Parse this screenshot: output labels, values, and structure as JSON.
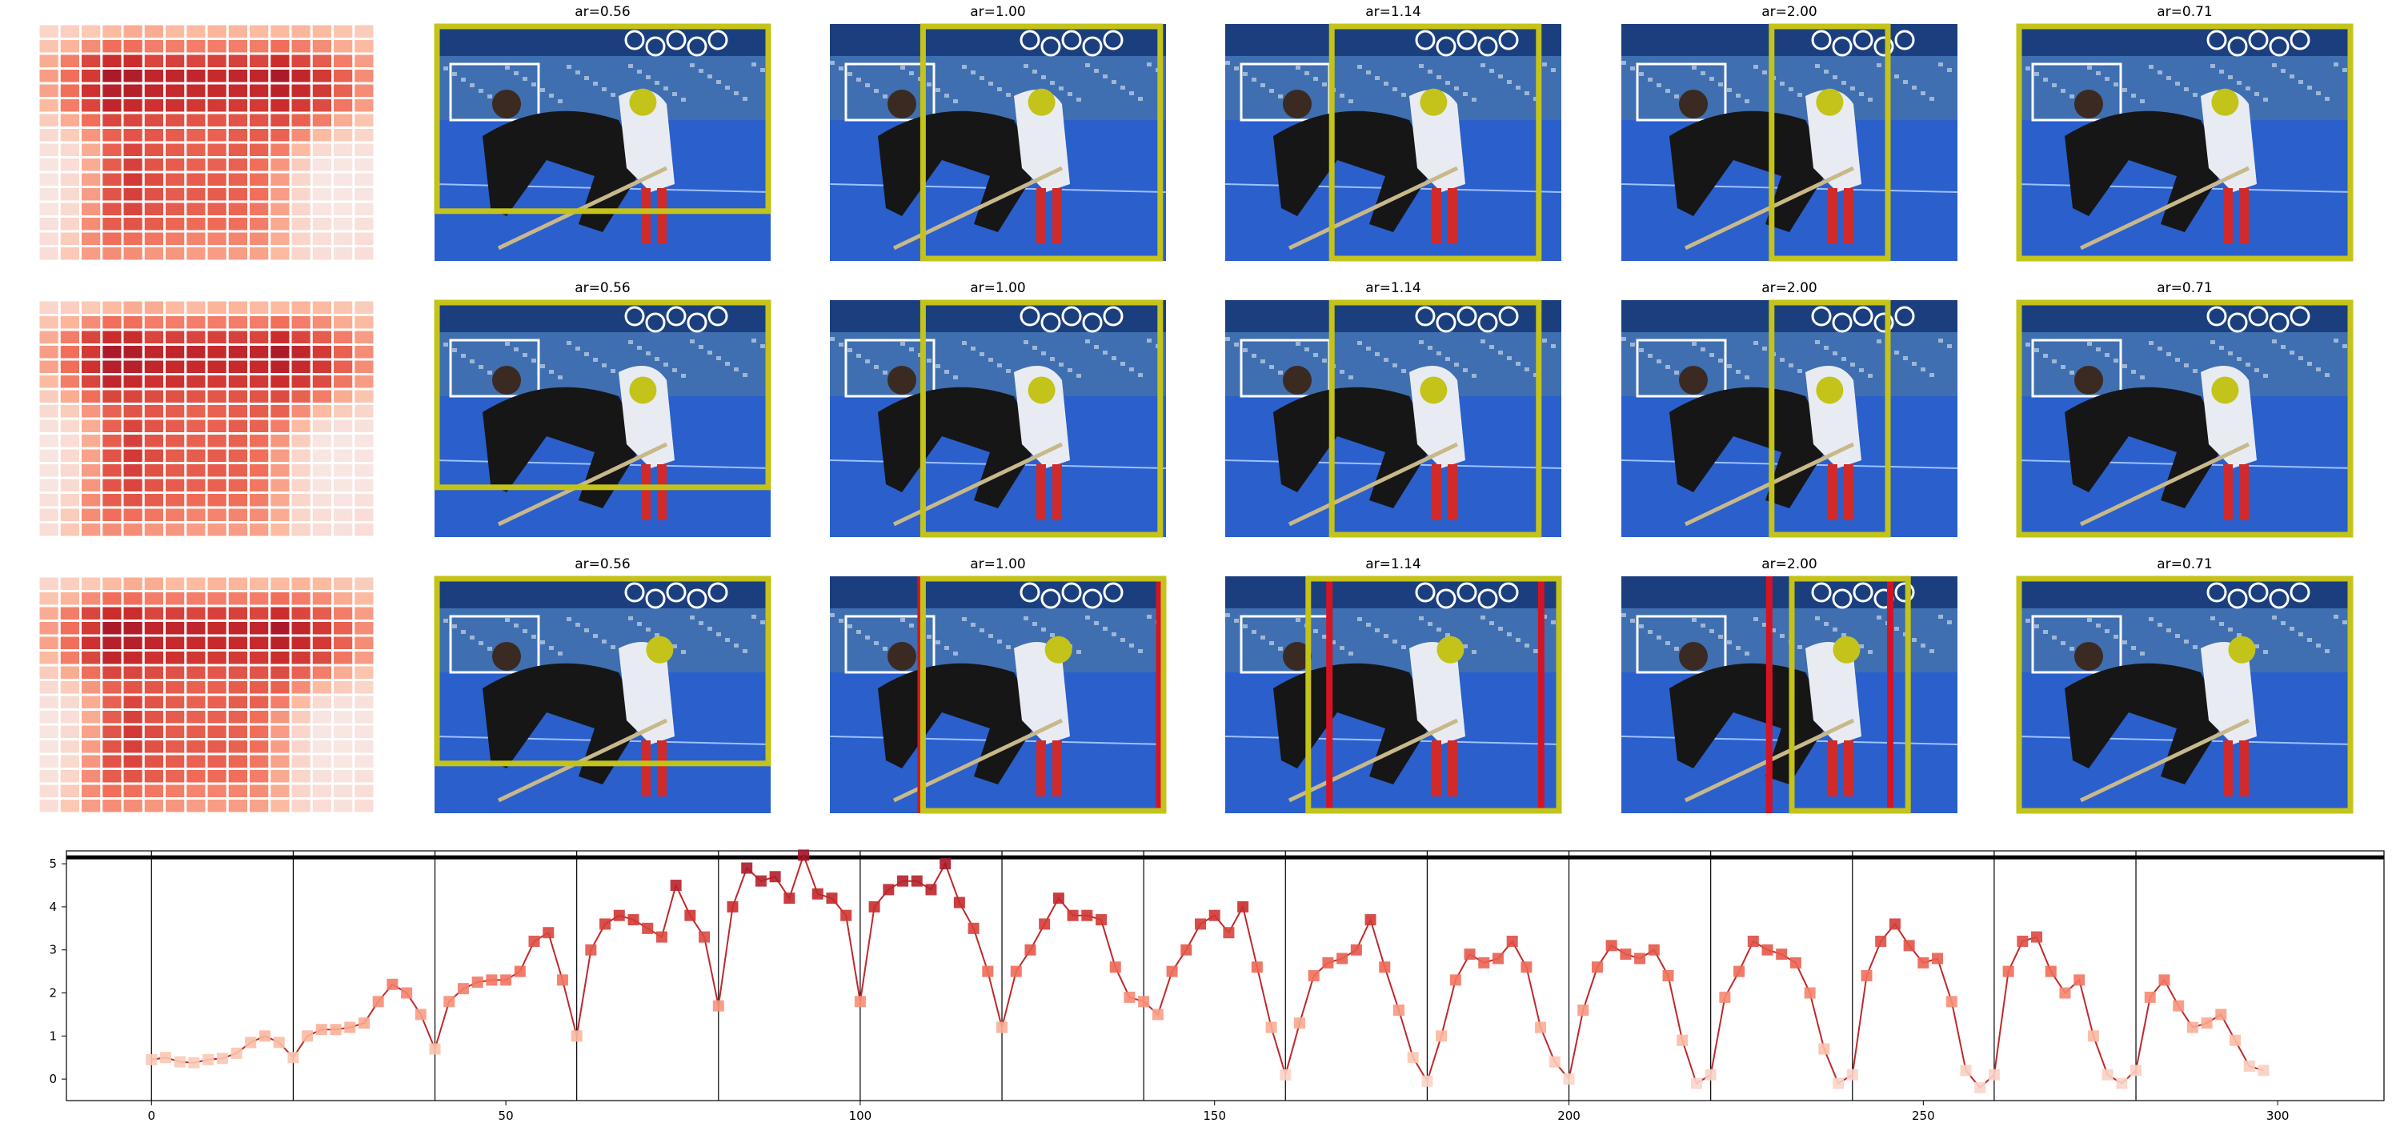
{
  "panels": {
    "titles": [
      "ar=0.56",
      "ar=1.00",
      "ar=1.14",
      "ar=2.00",
      "ar=0.71"
    ],
    "rows": [
      {
        "crops": [
          {
            "title": "ar=0.56",
            "crop": [
              0.0,
              0.0,
              1.0,
              0.8
            ],
            "point": [
              0.62,
              0.33
            ],
            "red_lines": []
          },
          {
            "title": "ar=1.00",
            "crop": [
              0.27,
              0.0,
              0.99,
              1.0
            ],
            "point": [
              0.63,
              0.33
            ],
            "red_lines": []
          },
          {
            "title": "ar=1.14",
            "crop": [
              0.31,
              0.0,
              0.94,
              1.0
            ],
            "point": [
              0.62,
              0.33
            ],
            "red_lines": []
          },
          {
            "title": "ar=2.00",
            "crop": [
              0.44,
              0.0,
              0.8,
              1.0
            ],
            "point": [
              0.62,
              0.33
            ],
            "red_lines": []
          },
          {
            "title": "ar=0.71",
            "crop": [
              0.0,
              0.0,
              1.0,
              1.0
            ],
            "point": [
              0.62,
              0.33
            ],
            "red_lines": []
          }
        ]
      },
      {
        "crops": [
          {
            "title": "ar=0.56",
            "crop": [
              0.0,
              0.0,
              1.0,
              0.8
            ],
            "point": [
              0.62,
              0.38
            ],
            "red_lines": []
          },
          {
            "title": "ar=1.00",
            "crop": [
              0.27,
              0.0,
              0.99,
              1.0
            ],
            "point": [
              0.63,
              0.38
            ],
            "red_lines": []
          },
          {
            "title": "ar=1.14",
            "crop": [
              0.31,
              0.0,
              0.94,
              1.0
            ],
            "point": [
              0.62,
              0.38
            ],
            "red_lines": []
          },
          {
            "title": "ar=2.00",
            "crop": [
              0.44,
              0.0,
              0.8,
              1.0
            ],
            "point": [
              0.62,
              0.38
            ],
            "red_lines": []
          },
          {
            "title": "ar=0.71",
            "crop": [
              0.0,
              0.0,
              1.0,
              1.0
            ],
            "point": [
              0.62,
              0.38
            ],
            "red_lines": []
          }
        ]
      },
      {
        "crops": [
          {
            "title": "ar=0.56",
            "crop": [
              0.0,
              0.0,
              1.0,
              0.8
            ],
            "point": [
              0.67,
              0.31
            ],
            "red_lines": []
          },
          {
            "title": "ar=1.00",
            "crop": [
              0.27,
              0.0,
              1.0,
              1.0
            ],
            "point": [
              0.68,
              0.31
            ],
            "red_lines": [
              0.27,
              0.98
            ]
          },
          {
            "title": "ar=1.14",
            "crop": [
              0.24,
              0.0,
              1.0,
              1.0
            ],
            "point": [
              0.67,
              0.31
            ],
            "red_lines": [
              0.31,
              0.94
            ]
          },
          {
            "title": "ar=2.00",
            "crop": [
              0.5,
              0.0,
              0.86,
              1.0
            ],
            "point": [
              0.67,
              0.31
            ],
            "red_lines": [
              0.44,
              0.8
            ]
          },
          {
            "title": "ar=0.71",
            "crop": [
              0.0,
              0.0,
              1.0,
              1.0
            ],
            "point": [
              0.67,
              0.31
            ],
            "red_lines": []
          }
        ]
      }
    ]
  },
  "colors": {
    "box": "#c3c31a",
    "red_line": "#d41424",
    "line": "#c0282a",
    "axis": "#000000",
    "sky": "#3f6fb0",
    "field": "#2a5fcc",
    "banner": "#1b3f7e",
    "player_dark": "#161616",
    "player_light": "#e8ecf2",
    "socks": "#d02a2a"
  },
  "chart_data": {
    "type": "line",
    "title": "",
    "xlabel": "",
    "ylabel": "",
    "xlim": [
      -12,
      315
    ],
    "ylim": [
      -0.5,
      5.3
    ],
    "xticks": [
      0,
      50,
      100,
      150,
      200,
      250,
      300
    ],
    "yticks": [
      0,
      1,
      2,
      3,
      4,
      5
    ],
    "vlines": [
      0,
      20,
      40,
      60,
      80,
      100,
      120,
      140,
      160,
      180,
      200,
      220,
      240,
      260,
      280
    ],
    "hline": 5.15,
    "markers": "square, colour by value (light to dark red)",
    "series": [
      {
        "x": [
          0,
          2,
          4,
          6,
          8,
          10,
          12,
          14,
          16,
          18,
          20,
          22,
          24,
          26,
          28,
          30,
          32,
          34,
          36,
          38,
          40,
          42,
          44,
          46,
          48,
          50,
          52,
          54,
          56,
          58,
          60,
          62,
          64,
          66,
          68,
          70,
          72,
          74,
          76,
          78,
          80,
          82,
          84,
          86,
          88,
          90,
          92,
          94,
          96,
          98,
          100,
          102,
          104,
          106,
          108,
          110,
          112,
          114,
          116,
          118,
          120,
          122,
          124,
          126,
          128,
          130,
          132,
          134,
          136,
          138,
          140,
          142,
          144,
          146,
          148,
          150,
          152,
          154,
          156,
          158,
          160,
          162,
          164,
          166,
          168,
          170,
          172,
          174,
          176,
          178,
          180,
          182,
          184,
          186,
          188,
          190,
          192,
          194,
          196,
          198,
          200,
          202,
          204,
          206,
          208,
          210,
          212,
          214,
          216,
          218,
          220,
          222,
          224,
          226,
          228,
          230,
          232,
          234,
          236,
          238,
          240,
          242,
          244,
          246,
          248,
          250,
          252,
          254,
          256,
          258,
          260,
          262,
          264,
          266,
          268,
          270,
          272,
          274,
          276,
          278,
          280,
          282,
          284,
          286,
          288,
          290,
          292,
          294,
          296,
          298
        ],
        "y": [
          0.45,
          0.5,
          0.4,
          0.38,
          0.45,
          0.48,
          0.6,
          0.85,
          1.0,
          0.85,
          0.5,
          1.0,
          1.15,
          1.15,
          1.2,
          1.3,
          1.8,
          2.2,
          2.0,
          1.5,
          0.7,
          1.8,
          2.1,
          2.25,
          2.3,
          2.3,
          2.5,
          3.2,
          3.4,
          2.3,
          1.0,
          3.0,
          3.6,
          3.8,
          3.7,
          3.5,
          3.3,
          4.5,
          3.8,
          3.3,
          1.7,
          4.0,
          4.9,
          4.6,
          4.7,
          4.2,
          5.2,
          4.3,
          4.2,
          3.8,
          1.8,
          4.0,
          4.4,
          4.6,
          4.6,
          4.4,
          5.0,
          4.1,
          3.5,
          2.5,
          1.2,
          2.5,
          3.0,
          3.6,
          4.2,
          3.8,
          3.8,
          3.7,
          2.6,
          1.9,
          1.8,
          1.5,
          2.5,
          3.0,
          3.6,
          3.8,
          3.4,
          4.0,
          2.6,
          1.2,
          0.1,
          1.3,
          2.4,
          2.7,
          2.8,
          3.0,
          3.7,
          2.6,
          1.6,
          0.5,
          -0.05,
          1.0,
          2.3,
          2.9,
          2.7,
          2.8,
          3.2,
          2.6,
          1.2,
          0.4,
          0.0,
          1.6,
          2.6,
          3.1,
          2.9,
          2.8,
          3.0,
          2.4,
          0.9,
          -0.1,
          0.1,
          1.9,
          2.5,
          3.2,
          3.0,
          2.9,
          2.7,
          2.0,
          0.7,
          -0.1,
          0.1,
          2.4,
          3.2,
          3.6,
          3.1,
          2.7,
          2.8,
          1.8,
          0.2,
          -0.2,
          0.1,
          2.5,
          3.2,
          3.3,
          2.5,
          2.0,
          2.3,
          1.0,
          0.1,
          -0.1,
          0.2,
          1.9,
          2.3,
          1.7,
          1.2,
          1.3,
          1.5,
          0.9,
          0.3,
          0.2
        ]
      }
    ]
  },
  "heatmap": {
    "cols": 16,
    "rows": 16,
    "values": [
      [
        0.15,
        0.18,
        0.22,
        0.3,
        0.35,
        0.35,
        0.3,
        0.3,
        0.32,
        0.32,
        0.3,
        0.3,
        0.32,
        0.3,
        0.25,
        0.2
      ],
      [
        0.25,
        0.32,
        0.45,
        0.55,
        0.55,
        0.5,
        0.5,
        0.5,
        0.5,
        0.5,
        0.5,
        0.55,
        0.5,
        0.45,
        0.35,
        0.3
      ],
      [
        0.35,
        0.5,
        0.7,
        0.8,
        0.8,
        0.7,
        0.72,
        0.7,
        0.72,
        0.72,
        0.7,
        0.8,
        0.7,
        0.62,
        0.5,
        0.4
      ],
      [
        0.4,
        0.55,
        0.75,
        0.95,
        0.92,
        0.85,
        0.85,
        0.85,
        0.82,
        0.85,
        0.85,
        0.95,
        0.85,
        0.75,
        0.6,
        0.45
      ],
      [
        0.38,
        0.55,
        0.78,
        0.9,
        0.9,
        0.85,
        0.82,
        0.82,
        0.82,
        0.82,
        0.82,
        0.88,
        0.82,
        0.75,
        0.6,
        0.45
      ],
      [
        0.3,
        0.5,
        0.7,
        0.85,
        0.82,
        0.78,
        0.78,
        0.76,
        0.75,
        0.75,
        0.75,
        0.8,
        0.75,
        0.68,
        0.52,
        0.4
      ],
      [
        0.2,
        0.35,
        0.55,
        0.7,
        0.7,
        0.68,
        0.66,
        0.65,
        0.64,
        0.65,
        0.65,
        0.68,
        0.6,
        0.5,
        0.35,
        0.25
      ],
      [
        0.12,
        0.2,
        0.42,
        0.6,
        0.65,
        0.64,
        0.62,
        0.6,
        0.6,
        0.62,
        0.62,
        0.6,
        0.45,
        0.3,
        0.2,
        0.15
      ],
      [
        0.08,
        0.12,
        0.35,
        0.6,
        0.7,
        0.65,
        0.62,
        0.6,
        0.6,
        0.62,
        0.6,
        0.5,
        0.3,
        0.12,
        0.08,
        0.08
      ],
      [
        0.06,
        0.1,
        0.35,
        0.62,
        0.72,
        0.65,
        0.62,
        0.6,
        0.6,
        0.6,
        0.55,
        0.42,
        0.2,
        0.06,
        0.05,
        0.06
      ],
      [
        0.06,
        0.12,
        0.38,
        0.65,
        0.75,
        0.68,
        0.62,
        0.62,
        0.62,
        0.6,
        0.55,
        0.4,
        0.15,
        0.05,
        0.05,
        0.06
      ],
      [
        0.06,
        0.12,
        0.4,
        0.65,
        0.72,
        0.66,
        0.62,
        0.62,
        0.62,
        0.6,
        0.55,
        0.4,
        0.15,
        0.05,
        0.05,
        0.06
      ],
      [
        0.06,
        0.12,
        0.42,
        0.65,
        0.7,
        0.65,
        0.62,
        0.6,
        0.6,
        0.58,
        0.52,
        0.38,
        0.15,
        0.06,
        0.05,
        0.06
      ],
      [
        0.08,
        0.15,
        0.45,
        0.62,
        0.65,
        0.62,
        0.58,
        0.56,
        0.56,
        0.55,
        0.5,
        0.36,
        0.15,
        0.08,
        0.06,
        0.08
      ],
      [
        0.1,
        0.2,
        0.45,
        0.55,
        0.55,
        0.52,
        0.5,
        0.48,
        0.48,
        0.48,
        0.45,
        0.35,
        0.15,
        0.1,
        0.08,
        0.1
      ],
      [
        0.1,
        0.22,
        0.4,
        0.45,
        0.45,
        0.42,
        0.42,
        0.4,
        0.4,
        0.4,
        0.38,
        0.3,
        0.15,
        0.1,
        0.08,
        0.1
      ]
    ]
  }
}
